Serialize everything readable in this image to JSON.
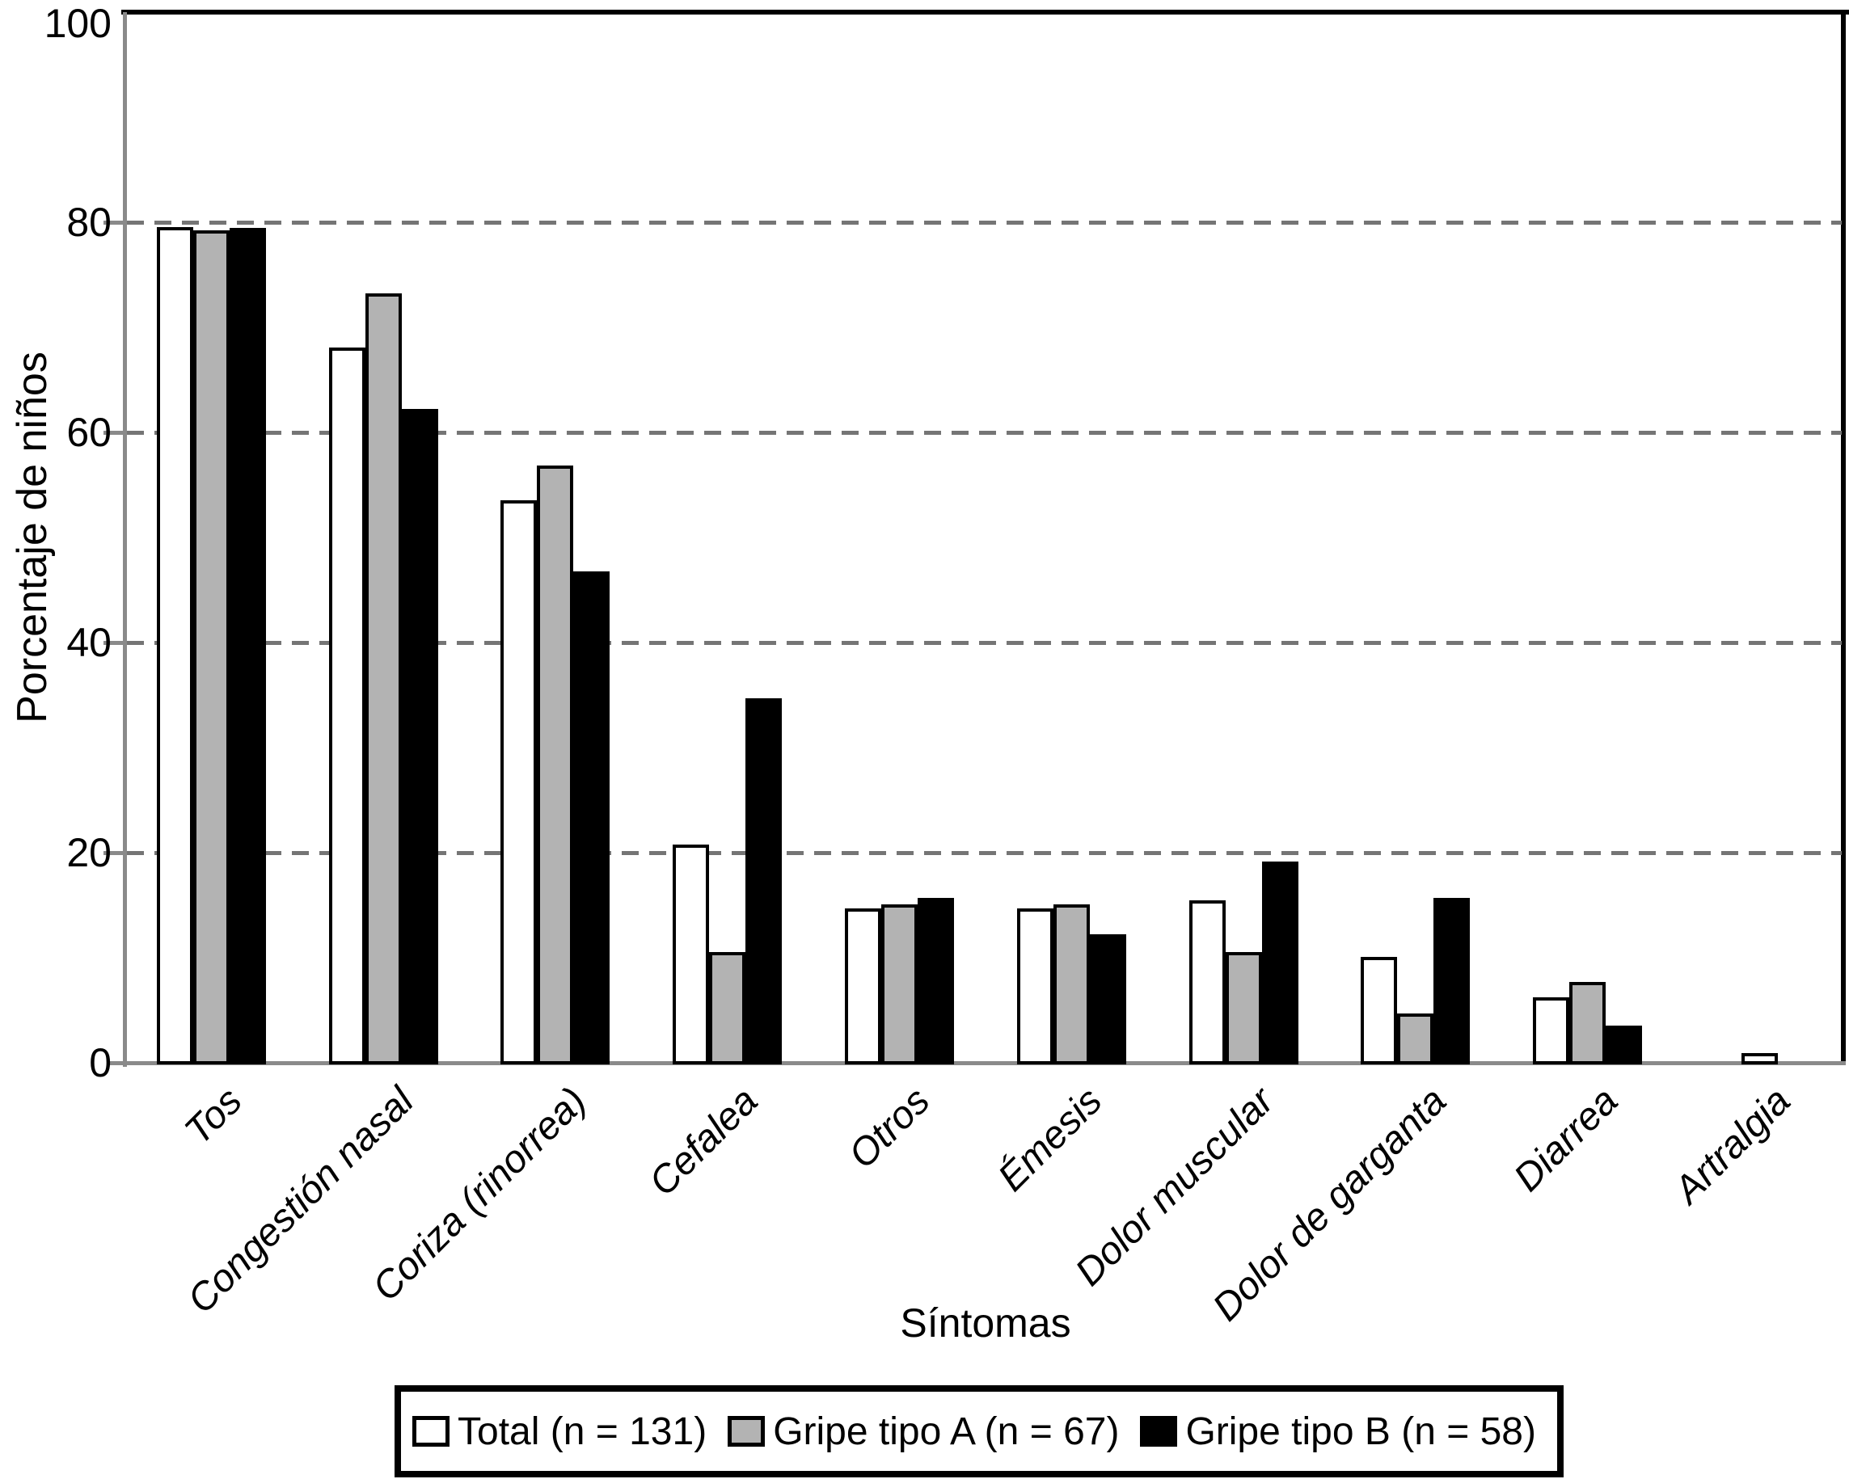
{
  "chart_data": {
    "type": "bar",
    "title": "",
    "categories": [
      "Tos",
      "Congestión nasal",
      "Coriza (rinorrea)",
      "Cefalea",
      "Otros",
      "Émesis",
      "Dolor muscular",
      "Dolor de garganta",
      "Diarrea",
      "Artralgia"
    ],
    "series": [
      {
        "name": "Total (n = 131)",
        "color": "#ffffff",
        "values": [
          79.4,
          67.9,
          53.4,
          20.6,
          14.5,
          14.5,
          15.3,
          9.9,
          6.1,
          0.8
        ]
      },
      {
        "name": "Gripe tipo A (n = 67)",
        "color": "#b3b3b3",
        "values": [
          79.1,
          73.1,
          56.7,
          10.4,
          14.9,
          14.9,
          10.4,
          4.5,
          7.5,
          0
        ]
      },
      {
        "name": "Gripe tipo B (n = 58)",
        "color": "#000000",
        "values": [
          79.3,
          62.1,
          46.6,
          34.5,
          15.5,
          12.1,
          19.0,
          15.5,
          3.4,
          0
        ]
      }
    ],
    "xlabel": "Síntomas",
    "ylabel": "Porcentaje de niños",
    "ylim": [
      0,
      100
    ],
    "yticks": [
      0,
      20,
      40,
      60,
      80,
      100
    ],
    "grid": "horizontal-dashed",
    "legend_position": "bottom-center"
  },
  "colors": {
    "background": "#ffffff",
    "bar_border": "#000000",
    "frame": "#000000",
    "axis_line": "#8a8a8a",
    "gridline": "#757575",
    "text": "#000000"
  }
}
